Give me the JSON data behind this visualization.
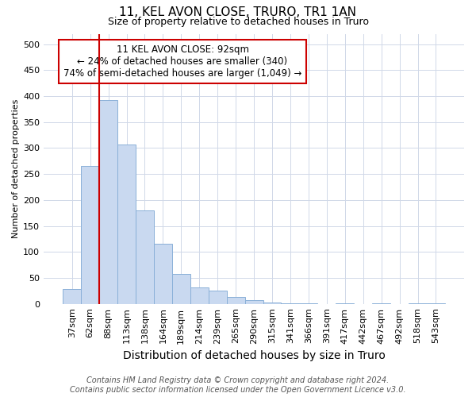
{
  "title": "11, KEL AVON CLOSE, TRURO, TR1 1AN",
  "subtitle": "Size of property relative to detached houses in Truro",
  "xlabel": "Distribution of detached houses by size in Truro",
  "ylabel": "Number of detached properties",
  "categories": [
    "37sqm",
    "62sqm",
    "88sqm",
    "113sqm",
    "138sqm",
    "164sqm",
    "189sqm",
    "214sqm",
    "239sqm",
    "265sqm",
    "290sqm",
    "315sqm",
    "341sqm",
    "366sqm",
    "391sqm",
    "417sqm",
    "442sqm",
    "467sqm",
    "492sqm",
    "518sqm",
    "543sqm"
  ],
  "values": [
    28,
    265,
    393,
    307,
    180,
    115,
    57,
    31,
    25,
    14,
    7,
    3,
    1,
    1,
    0,
    1,
    0,
    1,
    0,
    1,
    1
  ],
  "bar_color": "#c9d9f0",
  "bar_edge_color": "#8ab0d8",
  "vline_x_index": 2,
  "vline_color": "#cc0000",
  "annotation_text": "11 KEL AVON CLOSE: 92sqm\n← 24% of detached houses are smaller (340)\n74% of semi-detached houses are larger (1,049) →",
  "annotation_box_color": "#ffffff",
  "annotation_box_edge_color": "#cc0000",
  "ylim": [
    0,
    520
  ],
  "yticks": [
    0,
    50,
    100,
    150,
    200,
    250,
    300,
    350,
    400,
    450,
    500
  ],
  "footer_line1": "Contains HM Land Registry data © Crown copyright and database right 2024.",
  "footer_line2": "Contains public sector information licensed under the Open Government Licence v3.0.",
  "background_color": "#ffffff",
  "plot_background_color": "#ffffff",
  "title_fontsize": 11,
  "subtitle_fontsize": 9,
  "xlabel_fontsize": 10,
  "ylabel_fontsize": 8,
  "tick_fontsize": 8,
  "annotation_fontsize": 8.5,
  "footer_fontsize": 7
}
